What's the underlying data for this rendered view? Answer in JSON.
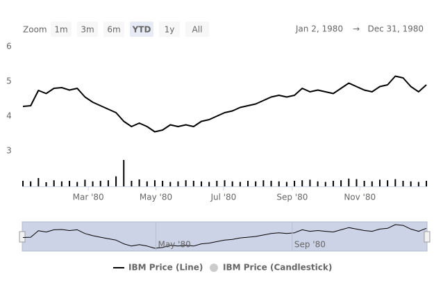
{
  "chart_data": {
    "type": "line",
    "range_selector": {
      "label": "Zoom",
      "buttons": [
        "1m",
        "3m",
        "6m",
        "YTD",
        "1y",
        "All"
      ],
      "selected": 3,
      "disabled": [
        4,
        5
      ],
      "from": "Jan 2, 1980",
      "arrow": "→",
      "to": "Dec 31, 1980"
    },
    "x": [
      "1980-01-02",
      "1980-01-09",
      "1980-01-16",
      "1980-01-23",
      "1980-01-30",
      "1980-02-06",
      "1980-02-13",
      "1980-02-20",
      "1980-02-27",
      "1980-03-05",
      "1980-03-12",
      "1980-03-19",
      "1980-03-26",
      "1980-04-02",
      "1980-04-09",
      "1980-04-16",
      "1980-04-23",
      "1980-04-30",
      "1980-05-07",
      "1980-05-14",
      "1980-05-21",
      "1980-05-28",
      "1980-06-04",
      "1980-06-11",
      "1980-06-18",
      "1980-06-25",
      "1980-07-02",
      "1980-07-09",
      "1980-07-16",
      "1980-07-23",
      "1980-07-30",
      "1980-08-06",
      "1980-08-13",
      "1980-08-20",
      "1980-08-27",
      "1980-09-03",
      "1980-09-10",
      "1980-09-17",
      "1980-09-24",
      "1980-10-01",
      "1980-10-08",
      "1980-10-15",
      "1980-10-22",
      "1980-10-29",
      "1980-11-05",
      "1980-11-12",
      "1980-11-19",
      "1980-11-26",
      "1980-12-03",
      "1980-12-10",
      "1980-12-17",
      "1980-12-24",
      "1980-12-31"
    ],
    "series": [
      {
        "name": "IBM Price (Line)",
        "color": "#000000",
        "values": [
          4.28,
          4.3,
          4.74,
          4.65,
          4.8,
          4.82,
          4.75,
          4.8,
          4.55,
          4.4,
          4.3,
          4.2,
          4.1,
          3.85,
          3.7,
          3.8,
          3.7,
          3.55,
          3.6,
          3.75,
          3.7,
          3.75,
          3.7,
          3.85,
          3.9,
          4.0,
          4.1,
          4.15,
          4.25,
          4.3,
          4.35,
          4.45,
          4.55,
          4.6,
          4.55,
          4.6,
          4.8,
          4.7,
          4.75,
          4.7,
          4.65,
          4.8,
          4.95,
          4.85,
          4.75,
          4.7,
          4.85,
          4.9,
          5.15,
          5.1,
          4.85,
          4.7,
          4.9
        ]
      },
      {
        "name": "IBM Price (Candlestick)",
        "color": "#cccccc",
        "visible": false
      }
    ],
    "volume": {
      "axis": "y2",
      "color": "#000000",
      "values": [
        20,
        18,
        30,
        15,
        22,
        18,
        20,
        16,
        24,
        18,
        20,
        22,
        36,
        95,
        20,
        25,
        18,
        22,
        20,
        16,
        18,
        22,
        20,
        18,
        16,
        20,
        22,
        18,
        16,
        20,
        18,
        22,
        20,
        18,
        16,
        20,
        22,
        24,
        18,
        16,
        20,
        22,
        28,
        26,
        20,
        18,
        24,
        22,
        26,
        20,
        18,
        16,
        20
      ]
    },
    "xlim": [
      "1980-01-02",
      "1980-12-31"
    ],
    "xticks": [
      {
        "value": "1980-03-01",
        "label": "Mar '80"
      },
      {
        "value": "1980-05-01",
        "label": "May '80"
      },
      {
        "value": "1980-07-01",
        "label": "Jul '80"
      },
      {
        "value": "1980-09-01",
        "label": "Sep '80"
      },
      {
        "value": "1980-11-01",
        "label": "Nov '80"
      }
    ],
    "ylim": [
      3,
      6
    ],
    "yticks": [
      6,
      5,
      4,
      3
    ],
    "y2lim": [
      0,
      100
    ],
    "navigator": {
      "xticks": [
        {
          "value": "1980-05-01",
          "label": "May '80"
        },
        {
          "value": "1980-09-01",
          "label": "Sep '80"
        }
      ]
    }
  }
}
